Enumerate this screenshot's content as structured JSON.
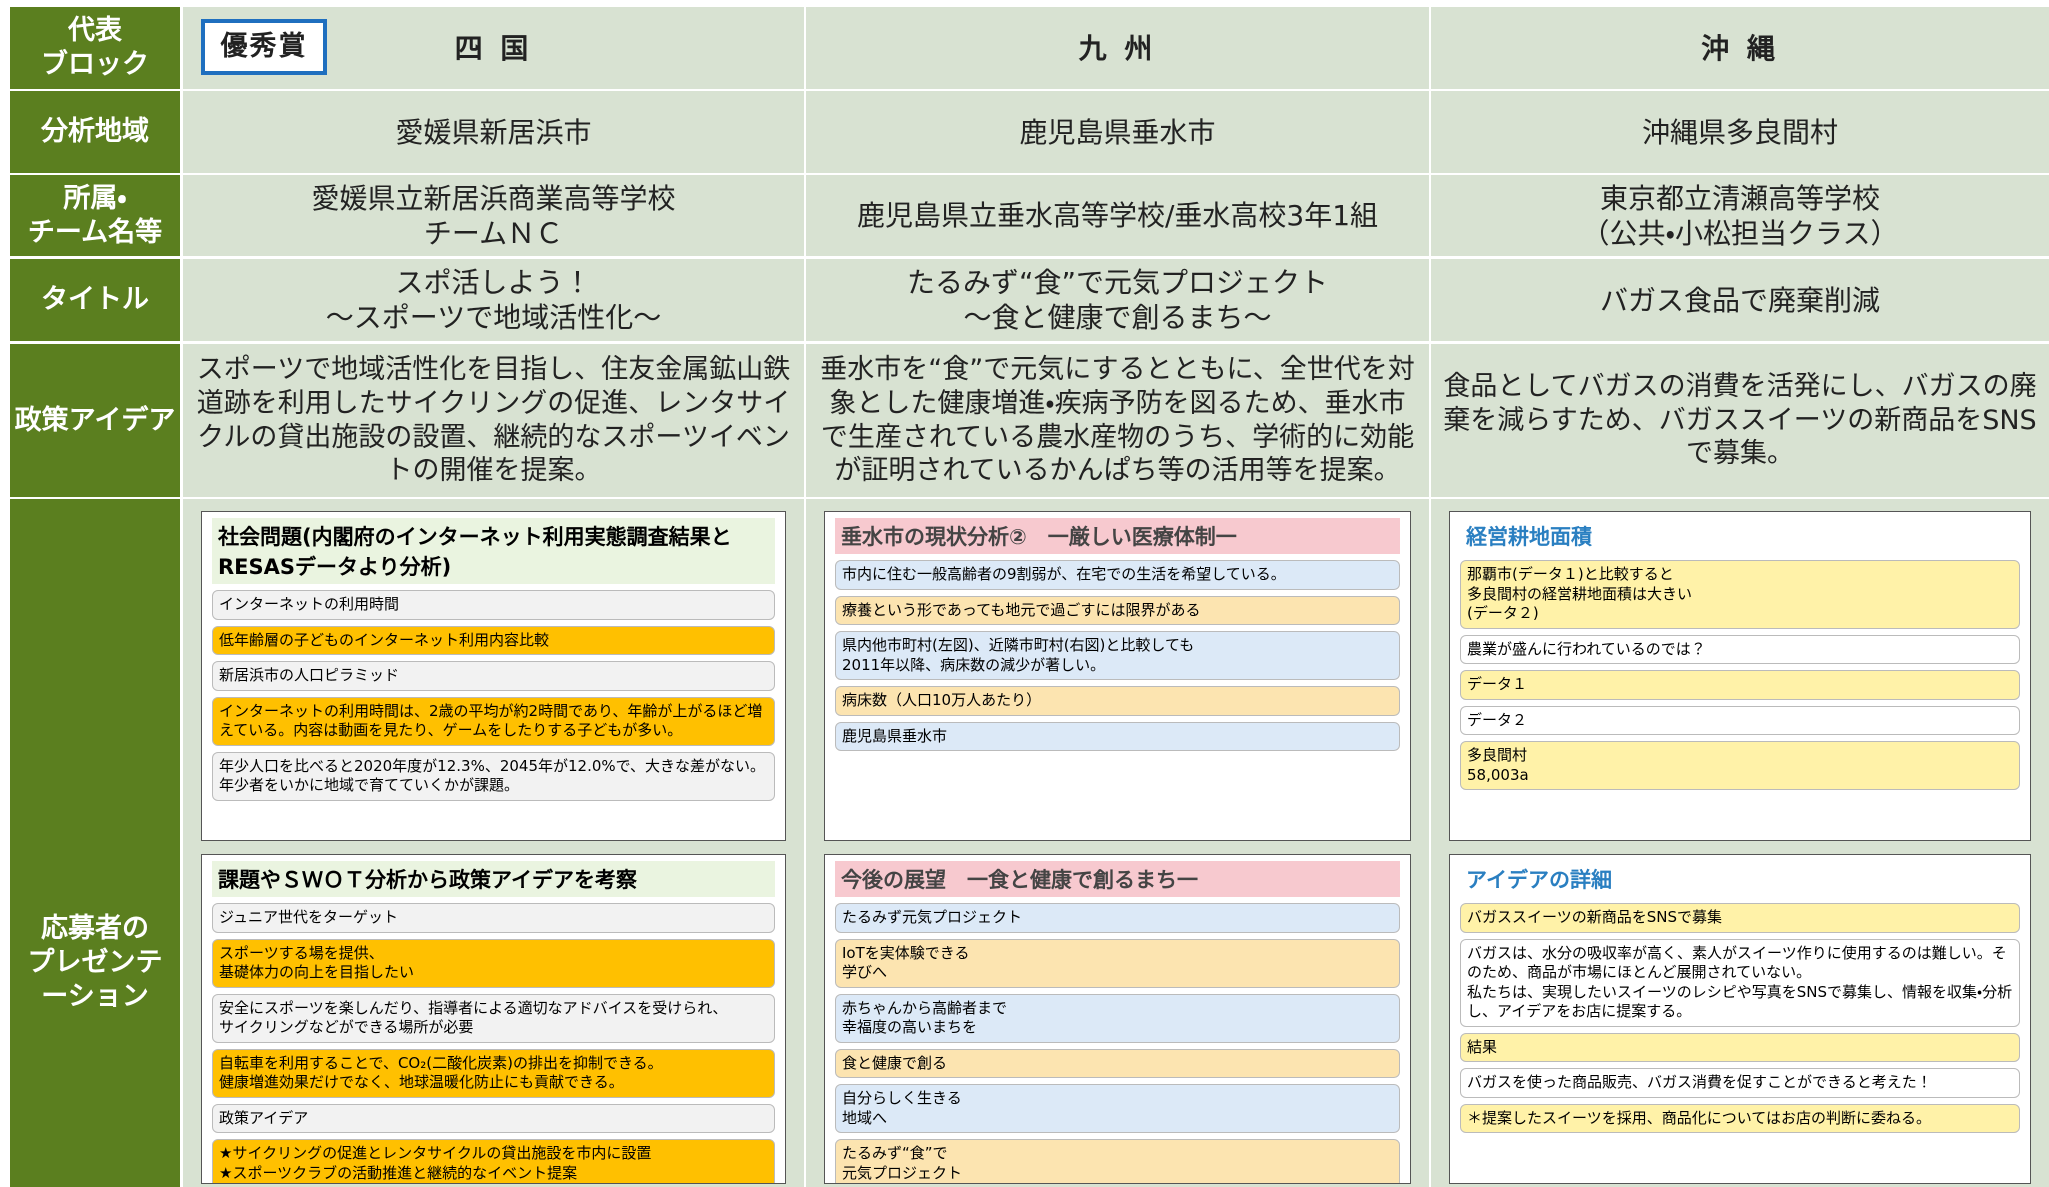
{
  "header": {
    "row_label": "代表\nブロック",
    "award": "優秀賞",
    "blocks": [
      "四 国",
      "九 州",
      "沖 縄"
    ]
  },
  "rows": [
    {
      "label": "分析地域",
      "cells": [
        "愛媛県新居浜市",
        "鹿児島県垂水市",
        "沖縄県多良間村"
      ]
    },
    {
      "label": "所属・\nチーム名等",
      "cells": [
        "愛媛県立新居浜商業高等学校\nチームＮＣ",
        "鹿児島県立垂水高等学校/垂水高校3年1組",
        "東京都立清瀬高等学校\n（公共・小松担当クラス）"
      ]
    },
    {
      "label": "タイトル",
      "cells": [
        "スポ活しよう！\n～スポーツで地域活性化～",
        "たるみず“食”で元気プロジェクト\n～食と健康で創るまち～",
        "バガス食品で廃棄削減"
      ]
    },
    {
      "label": "政策アイデア",
      "cells": [
        "スポーツで地域活性化を目指し、住友金属鉱山鉄道跡を利用したサイクリングの促進、レンタサイクルの貸出施設の設置、継続的なスポーツイベントの開催を提案。",
        "垂水市を“食”で元気にするとともに、全世代を対象とした健康増進・疾病予防を図るため、垂水市で生産されている農水産物のうち、学術的に効能が証明されているかんぱち等の活用等を提案。",
        "食品としてバガスの消費を活発にし、バガスの廃棄を減らすため、バガススイーツの新商品をSNSで募集。"
      ]
    }
  ],
  "presentation": {
    "label": "応募者の\nプレゼンテ\nーション",
    "slides": [
      [
        {
          "title": "社会問題(内閣府のインターネット利用実態調査結果とRESASデータより分析)",
          "items": [
            "インターネットの利用時間",
            "低年齢層の子どものインターネット利用内容比較",
            "新居浜市の人口ピラミッド",
            "インターネットの利用時間は、2歳の平均が約2時間であり、年齢が上がるほど増えている。内容は動画を見たり、ゲームをしたりする子どもが多い。",
            "年少人口を比べると2020年度が12.3%、2045年が12.0%で、大きな差がない。年少者をいかに地域で育てていくかが課題。"
          ]
        },
        {
          "title": "課題やＳＷＯＴ分析から政策アイデアを考察",
          "items": [
            "ジュニア世代をターゲット",
            "スポーツする場を提供、\n基礎体力の向上を目指したい",
            "安全にスポーツを楽しんだり、指導者による適切なアドバイスを受けられ、\nサイクリングなどができる場所が必要",
            "自転車を利用することで、CO₂(二酸化炭素)の排出を抑制できる。\n健康増進効果だけでなく、地球温暖化防止にも貢献できる。",
            "政策アイデア",
            "★サイクリングの促進とレンタサイクルの貸出施設を市内に設置\n★スポーツクラブの活動推進と継続的なイベント提案"
          ]
        }
      ],
      [
        {
          "title": "垂水市の現状分析②　一厳しい医療体制一",
          "items": [
            "市内に住む一般高齢者の9割弱が、在宅での生活を希望している。",
            "療養という形であっても地元で過ごすには限界がある",
            "県内他市町村(左図)、近隣市町村(右図)と比較しても\n2011年以降、病床数の減少が著しい。",
            "病床数（人口10万人あたり）",
            "鹿児島県垂水市"
          ]
        },
        {
          "title": "今後の展望　一食と健康で創るまち一",
          "items": [
            "たるみず元気プロジェクト",
            "IoTを実体験できる\n学びへ",
            "赤ちゃんから高齢者まで\n幸福度の高いまちを",
            "食と健康で創る",
            "自分らしく生きる\n地域へ",
            "たるみず“食”で\n元気プロジェクト"
          ]
        }
      ],
      [
        {
          "title": "経営耕地面積",
          "items": [
            "那覇市(データ１)と比較すると\n多良間村の経営耕地面積は大きい\n(データ２)",
            "農業が盛んに行われているのでは？",
            "データ１",
            "データ２",
            "多良間村\n58,003a"
          ]
        },
        {
          "title": "アイデアの詳細",
          "items": [
            "バガススイーツの新商品をSNSで募集",
            "バガスは、水分の吸収率が高く、素人がスイーツ作りに使用するのは難しい。そのため、商品が市場にほとんど展開されていない。\n私たちは、実現したいスイーツのレシピや写真をSNSで募集し、情報を収集・分析し、アイデアをお店に提案する。",
            "結果",
            "バガスを使った商品販売、バガス消費を促すことができると考えた！",
            "＊提案したスイーツを採用、商品化についてはお店の判断に委ねる。"
          ]
        }
      ]
    ]
  }
}
